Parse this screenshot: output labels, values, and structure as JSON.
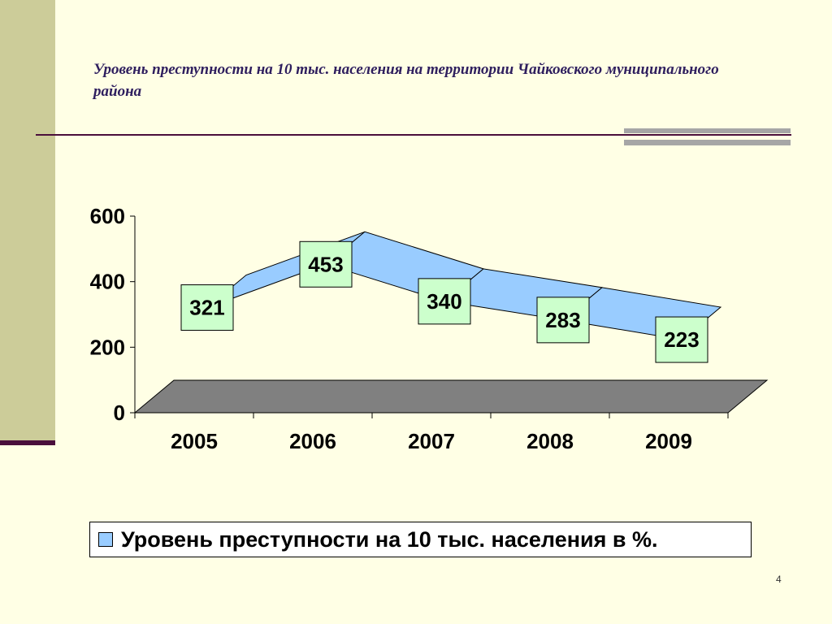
{
  "slide": {
    "title": "Уровень преступности на 10 тыс. населения на территории Чайковского муниципального района",
    "slide_number": "4"
  },
  "colors": {
    "background": "#FFFFE5",
    "band": "#CCCC99",
    "rule": "#4A0F3B",
    "ribbon": "#99CCFF",
    "floor": "#808080",
    "label_box": "#CCFFCC"
  },
  "chart_data": {
    "type": "line",
    "style": "3d-ribbon",
    "categories": [
      "2005",
      "2006",
      "2007",
      "2008",
      "2009"
    ],
    "series": [
      {
        "name": "Уровень преступности на 10 тыс. населения в %.",
        "values": [
          321,
          453,
          340,
          283,
          223
        ],
        "data_labels": [
          "321",
          "453",
          "340",
          "283",
          "223"
        ]
      }
    ],
    "y_ticks": [
      "0",
      "200",
      "400",
      "600"
    ],
    "ylim": [
      0,
      600
    ],
    "grid": false,
    "legend_position": "bottom"
  }
}
